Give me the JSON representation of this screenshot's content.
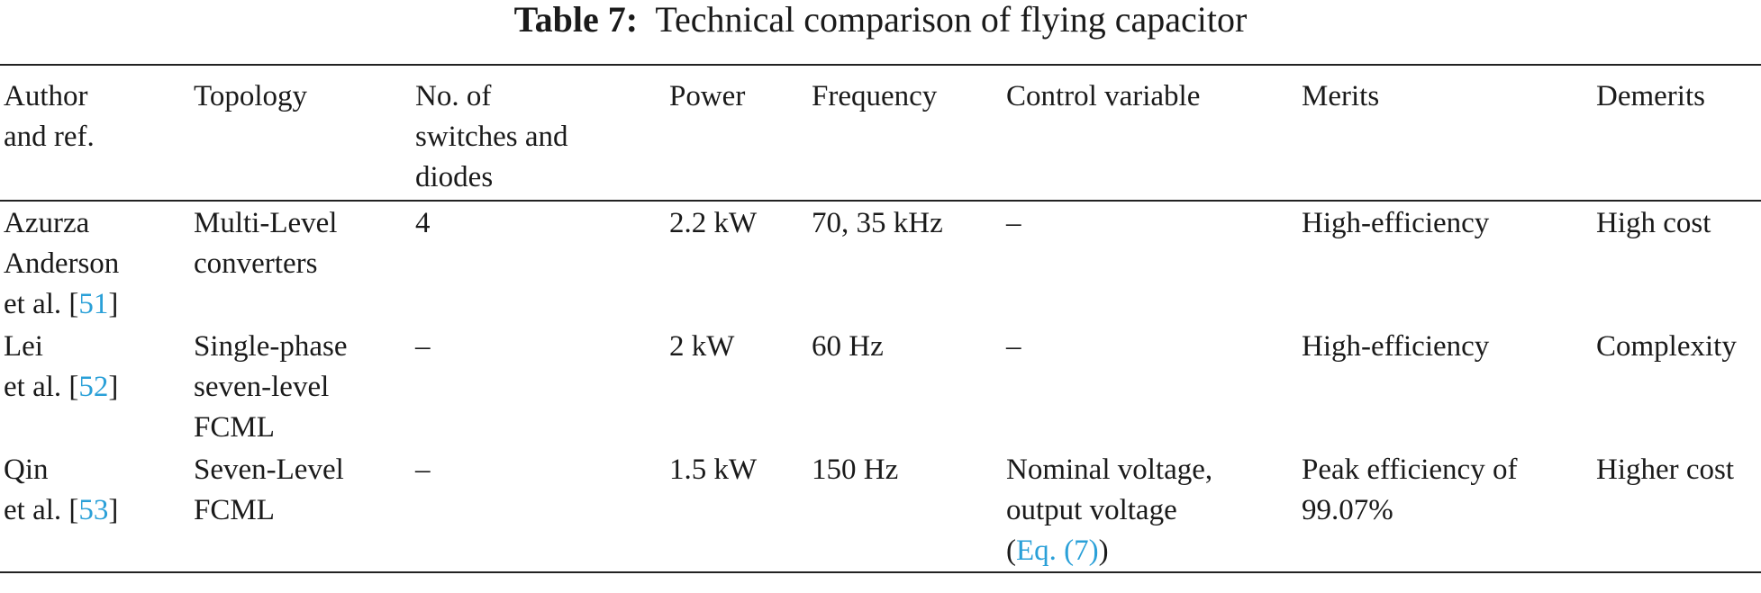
{
  "caption": {
    "label": "Table 7:",
    "title": "Technical comparison of flying capacitor"
  },
  "table": {
    "headers": [
      [
        "Author",
        "and ref."
      ],
      [
        "Topology"
      ],
      [
        "No. of",
        "switches and",
        "diodes"
      ],
      [
        "Power"
      ],
      [
        "Frequency"
      ],
      [
        "Control variable"
      ],
      [
        "Merits"
      ],
      [
        "Demerits"
      ]
    ],
    "rows": [
      {
        "author": [
          "Azurza",
          "Anderson"
        ],
        "author_etal": "et al. [",
        "ref": "51",
        "author_close": "]",
        "topology": [
          "Multi-Level",
          "converters"
        ],
        "switches": "4",
        "power": "2.2 kW",
        "frequency": "70, 35 kHz",
        "control": [
          "–"
        ],
        "merits": [
          "High-efficiency"
        ],
        "demerits": "High cost"
      },
      {
        "author": [
          "Lei"
        ],
        "author_etal": "et al. [",
        "ref": "52",
        "author_close": "]",
        "topology": [
          "Single-phase",
          "seven-level",
          "FCML"
        ],
        "switches": "–",
        "power": "2 kW",
        "frequency": "60 Hz",
        "control": [
          "–"
        ],
        "merits": [
          "High-efficiency"
        ],
        "demerits": "Complexity"
      },
      {
        "author": [
          "Qin"
        ],
        "author_etal": "et al. [",
        "ref": "53",
        "author_close": "]",
        "topology": [
          "Seven-Level",
          "FCML"
        ],
        "switches": "–",
        "power": "1.5 kW",
        "frequency": "150 Hz",
        "control": [
          "Nominal voltage,",
          "output voltage"
        ],
        "control_open": "(",
        "control_ref": "Eq. (7)",
        "control_close": ")",
        "merits": [
          "Peak efficiency of",
          "99.07%"
        ],
        "demerits": "Higher cost"
      }
    ]
  }
}
